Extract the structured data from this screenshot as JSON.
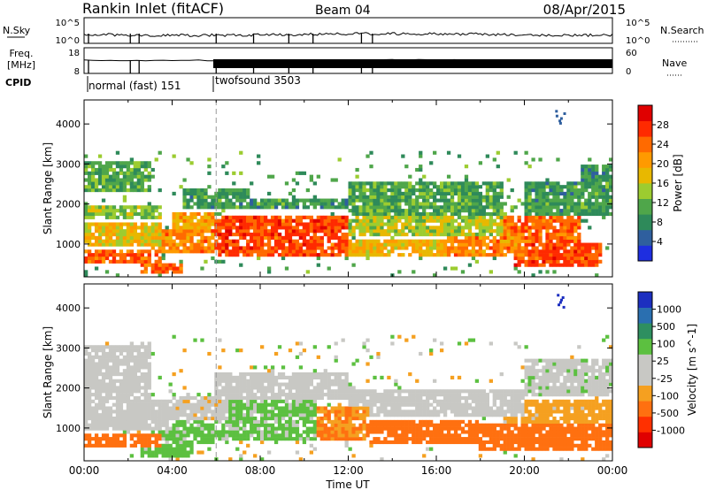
{
  "header": {
    "station": "Rankin Inlet (fitACF)",
    "beam": "Beam 04",
    "date": "08/Apr/2015"
  },
  "top_panels": {
    "nsky_label": "N.Sky",
    "nsearch_label": "N.Search",
    "nsky_ticks": [
      "10^5",
      "10^0"
    ],
    "nsearch_ticks": [
      "10^5",
      "10^0"
    ],
    "freq_label_1": "Freq.",
    "freq_label_2": "[MHz]",
    "freq_ticks": [
      "18",
      "8"
    ],
    "nave_label": "Nave",
    "nave_ticks": [
      "60",
      "0"
    ],
    "cpid_label": "CPID",
    "cpid_segments": [
      {
        "name": "normal (fast) 151",
        "start_hour": 0.0,
        "end_hour": 6.0
      },
      {
        "name": "twofsound 3503",
        "start_hour": 6.0,
        "end_hour": 24.0
      }
    ]
  },
  "colorbars": {
    "power": {
      "label": "Power [dB]",
      "ticks": [
        "28",
        "24",
        "20",
        "16",
        "12",
        "8",
        "4"
      ],
      "colors": [
        "#e00000",
        "#ff2a00",
        "#ff6a00",
        "#ff9a00",
        "#e8b800",
        "#9ccc30",
        "#4fa64a",
        "#2e8a5a",
        "#2f5f9e",
        "#1e2ee0"
      ]
    },
    "velocity": {
      "label": "Velocity [m s^-1]",
      "ticks": [
        "1000",
        "500",
        "100",
        "25",
        "-25",
        "-100",
        "-500",
        "-1000"
      ],
      "colors": [
        "#1c2fc0",
        "#2a6fb0",
        "#2e8f60",
        "#5cc040",
        "#c8c8c4",
        "#c8c8c4",
        "#f5a020",
        "#ff7010",
        "#ff3000",
        "#e00000"
      ]
    }
  },
  "chart_data": [
    {
      "type": "heatmap",
      "name": "power",
      "ylabel": "Slant Range [km]",
      "yticks": [
        1000,
        2000,
        3000,
        4000
      ],
      "ylim": [
        180,
        4600
      ],
      "xlim_hours": [
        0,
        24
      ],
      "vertical_marker_hours": [
        6.0
      ],
      "bands": [
        {
          "start": 0,
          "end": 3.5,
          "lo": 520,
          "hi": 900,
          "value": 26
        },
        {
          "start": 0,
          "end": 3.5,
          "lo": 950,
          "hi": 1550,
          "value": 18
        },
        {
          "start": 0,
          "end": 3.5,
          "lo": 1600,
          "hi": 2000,
          "value": 13
        },
        {
          "start": 0,
          "end": 3.0,
          "lo": 2300,
          "hi": 3100,
          "value": 10
        },
        {
          "start": 2.5,
          "end": 4.5,
          "lo": 250,
          "hi": 550,
          "value": 26
        },
        {
          "start": 3.0,
          "end": 6.0,
          "lo": 800,
          "hi": 1350,
          "value": 23
        },
        {
          "start": 4.0,
          "end": 6.0,
          "lo": 1350,
          "hi": 1800,
          "value": 20
        },
        {
          "start": 4.5,
          "end": 7.5,
          "lo": 1900,
          "hi": 2350,
          "value": 9
        },
        {
          "start": 6.0,
          "end": 12.0,
          "lo": 700,
          "hi": 1750,
          "value": 27
        },
        {
          "start": 6.0,
          "end": 12.0,
          "lo": 1850,
          "hi": 2100,
          "value": 9
        },
        {
          "start": 12.0,
          "end": 16.5,
          "lo": 700,
          "hi": 1100,
          "value": 19
        },
        {
          "start": 12.0,
          "end": 19.0,
          "lo": 1200,
          "hi": 1700,
          "value": 15
        },
        {
          "start": 12.0,
          "end": 19.0,
          "lo": 1750,
          "hi": 2600,
          "value": 10
        },
        {
          "start": 16.5,
          "end": 20.0,
          "lo": 700,
          "hi": 1250,
          "value": 23
        },
        {
          "start": 19.0,
          "end": 22.5,
          "lo": 1000,
          "hi": 1700,
          "value": 25
        },
        {
          "start": 19.5,
          "end": 23.5,
          "lo": 400,
          "hi": 1000,
          "value": 27
        },
        {
          "start": 20.0,
          "end": 24.0,
          "lo": 1700,
          "hi": 2600,
          "value": 9
        },
        {
          "start": 22.5,
          "end": 24.0,
          "lo": 2600,
          "hi": 3000,
          "value": 8
        }
      ]
    },
    {
      "type": "heatmap",
      "name": "velocity",
      "ylabel": "Slant Range [km]",
      "yticks": [
        1000,
        2000,
        3000,
        4000
      ],
      "ylim": [
        180,
        4600
      ],
      "xlim_hours": [
        0,
        24
      ],
      "xticks": [
        "00:00",
        "04:00",
        "08:00",
        "12:00",
        "16:00",
        "20:00",
        "00:00"
      ],
      "xlabel": "Time UT",
      "vertical_marker_hours": [
        6.0
      ],
      "bands": [
        {
          "start": 0,
          "end": 3.5,
          "lo": 500,
          "hi": 900,
          "value": -200
        },
        {
          "start": 0,
          "end": 4.0,
          "lo": 950,
          "hi": 1700,
          "value": 0
        },
        {
          "start": 0,
          "end": 3.0,
          "lo": 1750,
          "hi": 3100,
          "value": 5
        },
        {
          "start": 2.5,
          "end": 5.0,
          "lo": 300,
          "hi": 600,
          "value": 60
        },
        {
          "start": 3.0,
          "end": 6.0,
          "lo": 600,
          "hi": 1200,
          "value": 50
        },
        {
          "start": 4.0,
          "end": 6.5,
          "lo": 1200,
          "hi": 1800,
          "value": -10
        },
        {
          "start": 6.0,
          "end": 10.5,
          "lo": 700,
          "hi": 1700,
          "value": 40
        },
        {
          "start": 6.0,
          "end": 12.0,
          "lo": 1750,
          "hi": 2400,
          "value": 0
        },
        {
          "start": 10.5,
          "end": 13.0,
          "lo": 700,
          "hi": 1500,
          "value": -100
        },
        {
          "start": 12.0,
          "end": 20.0,
          "lo": 1300,
          "hi": 2000,
          "value": 0
        },
        {
          "start": 13.0,
          "end": 18.0,
          "lo": 600,
          "hi": 1200,
          "value": -300
        },
        {
          "start": 18.0,
          "end": 24.0,
          "lo": 400,
          "hi": 1100,
          "value": -300
        },
        {
          "start": 19.0,
          "end": 24.0,
          "lo": 1100,
          "hi": 1700,
          "value": -60
        },
        {
          "start": 20.0,
          "end": 24.0,
          "lo": 1800,
          "hi": 2700,
          "value": 10
        }
      ]
    }
  ]
}
